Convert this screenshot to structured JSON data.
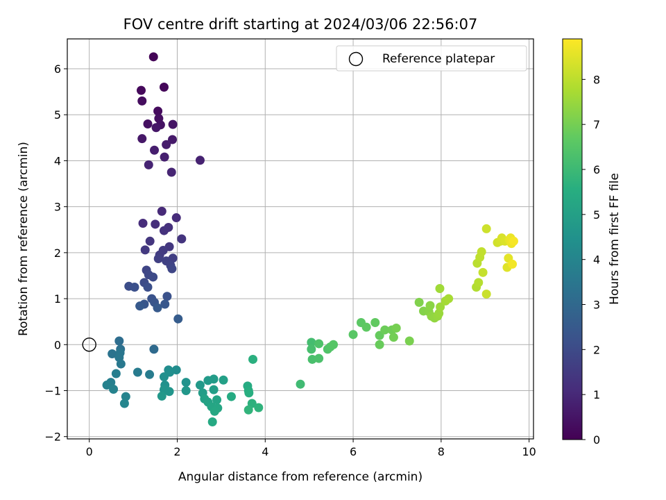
{
  "chart_data": {
    "type": "scatter",
    "title": "FOV centre drift starting at 2024/03/06 22:56:07",
    "xlabel": "Angular distance from reference (arcmin)",
    "ylabel": "Rotation from reference (arcmin)",
    "xlim": [
      -0.5,
      10.1
    ],
    "ylim": [
      -2.05,
      6.65
    ],
    "xticks": [
      0,
      2,
      4,
      6,
      8,
      10
    ],
    "yticks": [
      -2,
      -1,
      0,
      1,
      2,
      3,
      4,
      5,
      6
    ],
    "grid": true,
    "colormap": "viridis",
    "colorbar": {
      "label": "Hours from first FF file",
      "range": [
        0,
        8.9
      ],
      "ticks": [
        0,
        1,
        2,
        3,
        4,
        5,
        6,
        7,
        8
      ]
    },
    "legend": {
      "position": "top-right",
      "entries": [
        "Reference platepar"
      ]
    },
    "reference_point": {
      "x": 0,
      "y": 0,
      "label": "Reference platepar"
    },
    "points": [
      {
        "x": 1.46,
        "y": 6.26,
        "h": 0.1
      },
      {
        "x": 1.7,
        "y": 5.6,
        "h": 0.15
      },
      {
        "x": 1.18,
        "y": 5.53,
        "h": 0.2
      },
      {
        "x": 1.56,
        "y": 5.08,
        "h": 0.25
      },
      {
        "x": 1.2,
        "y": 5.3,
        "h": 0.3
      },
      {
        "x": 1.58,
        "y": 4.92,
        "h": 0.35
      },
      {
        "x": 1.33,
        "y": 4.8,
        "h": 0.4
      },
      {
        "x": 1.62,
        "y": 4.78,
        "h": 0.45
      },
      {
        "x": 1.9,
        "y": 4.79,
        "h": 0.5
      },
      {
        "x": 1.52,
        "y": 4.72,
        "h": 0.55
      },
      {
        "x": 1.2,
        "y": 4.48,
        "h": 0.6
      },
      {
        "x": 1.89,
        "y": 4.46,
        "h": 0.65
      },
      {
        "x": 1.75,
        "y": 4.35,
        "h": 0.7
      },
      {
        "x": 1.48,
        "y": 4.23,
        "h": 0.75
      },
      {
        "x": 1.71,
        "y": 4.08,
        "h": 0.8
      },
      {
        "x": 2.52,
        "y": 4.01,
        "h": 0.85
      },
      {
        "x": 1.35,
        "y": 3.91,
        "h": 0.9
      },
      {
        "x": 1.87,
        "y": 3.75,
        "h": 0.95
      },
      {
        "x": 1.65,
        "y": 2.9,
        "h": 1.05
      },
      {
        "x": 1.98,
        "y": 2.76,
        "h": 1.1
      },
      {
        "x": 1.22,
        "y": 2.64,
        "h": 1.15
      },
      {
        "x": 1.5,
        "y": 2.62,
        "h": 1.2
      },
      {
        "x": 1.8,
        "y": 2.55,
        "h": 1.25
      },
      {
        "x": 1.7,
        "y": 2.48,
        "h": 1.3
      },
      {
        "x": 2.1,
        "y": 2.3,
        "h": 1.35
      },
      {
        "x": 1.38,
        "y": 2.25,
        "h": 1.4
      },
      {
        "x": 1.82,
        "y": 2.13,
        "h": 1.45
      },
      {
        "x": 1.27,
        "y": 2.06,
        "h": 1.5
      },
      {
        "x": 1.68,
        "y": 2.05,
        "h": 1.55
      },
      {
        "x": 1.6,
        "y": 1.95,
        "h": 1.6
      },
      {
        "x": 1.9,
        "y": 1.88,
        "h": 1.65
      },
      {
        "x": 1.57,
        "y": 1.87,
        "h": 1.7
      },
      {
        "x": 1.75,
        "y": 1.82,
        "h": 1.75
      },
      {
        "x": 1.85,
        "y": 1.72,
        "h": 1.8
      },
      {
        "x": 1.3,
        "y": 1.62,
        "h": 1.85
      },
      {
        "x": 1.88,
        "y": 1.65,
        "h": 1.9
      },
      {
        "x": 1.35,
        "y": 1.52,
        "h": 1.95
      },
      {
        "x": 1.45,
        "y": 1.47,
        "h": 2.0
      },
      {
        "x": 1.25,
        "y": 1.35,
        "h": 2.05
      },
      {
        "x": 0.9,
        "y": 1.27,
        "h": 2.1
      },
      {
        "x": 1.33,
        "y": 1.25,
        "h": 2.15
      },
      {
        "x": 1.03,
        "y": 1.25,
        "h": 2.2
      },
      {
        "x": 1.77,
        "y": 1.05,
        "h": 2.25
      },
      {
        "x": 1.42,
        "y": 1.0,
        "h": 2.3
      },
      {
        "x": 1.48,
        "y": 0.92,
        "h": 2.35
      },
      {
        "x": 1.25,
        "y": 0.88,
        "h": 2.4
      },
      {
        "x": 1.72,
        "y": 0.88,
        "h": 2.45
      },
      {
        "x": 1.15,
        "y": 0.84,
        "h": 2.5
      },
      {
        "x": 1.55,
        "y": 0.8,
        "h": 2.55
      },
      {
        "x": 2.02,
        "y": 0.56,
        "h": 2.6
      },
      {
        "x": 1.47,
        "y": -0.1,
        "h": 3.1
      },
      {
        "x": 0.68,
        "y": 0.08,
        "h": 3.2
      },
      {
        "x": 0.71,
        "y": -0.1,
        "h": 3.3
      },
      {
        "x": 0.52,
        "y": -0.2,
        "h": 3.4
      },
      {
        "x": 0.7,
        "y": -0.18,
        "h": 3.5
      },
      {
        "x": 0.68,
        "y": -0.28,
        "h": 3.55
      },
      {
        "x": 0.72,
        "y": -0.42,
        "h": 3.6
      },
      {
        "x": 1.1,
        "y": -0.6,
        "h": 3.7
      },
      {
        "x": 1.37,
        "y": -0.65,
        "h": 3.75
      },
      {
        "x": 0.61,
        "y": -0.63,
        "h": 3.8
      },
      {
        "x": 0.49,
        "y": -0.82,
        "h": 3.85
      },
      {
        "x": 0.4,
        "y": -0.88,
        "h": 3.9
      },
      {
        "x": 0.55,
        "y": -0.97,
        "h": 3.95
      },
      {
        "x": 0.83,
        "y": -1.13,
        "h": 4.0
      },
      {
        "x": 0.8,
        "y": -1.28,
        "h": 4.05
      },
      {
        "x": 1.8,
        "y": -0.55,
        "h": 4.3
      },
      {
        "x": 1.98,
        "y": -0.55,
        "h": 4.35
      },
      {
        "x": 1.83,
        "y": -0.6,
        "h": 4.4
      },
      {
        "x": 1.7,
        "y": -0.7,
        "h": 4.45
      },
      {
        "x": 1.72,
        "y": -0.88,
        "h": 4.5
      },
      {
        "x": 2.2,
        "y": -0.82,
        "h": 4.55
      },
      {
        "x": 1.7,
        "y": -0.98,
        "h": 4.6
      },
      {
        "x": 1.82,
        "y": -1.02,
        "h": 4.65
      },
      {
        "x": 2.2,
        "y": -1.0,
        "h": 4.7
      },
      {
        "x": 1.65,
        "y": -1.12,
        "h": 4.75
      },
      {
        "x": 2.52,
        "y": -0.88,
        "h": 4.8
      },
      {
        "x": 2.7,
        "y": -0.78,
        "h": 4.85
      },
      {
        "x": 2.83,
        "y": -0.75,
        "h": 4.9
      },
      {
        "x": 2.58,
        "y": -1.05,
        "h": 4.95
      },
      {
        "x": 2.83,
        "y": -0.98,
        "h": 5.0
      },
      {
        "x": 3.05,
        "y": -0.77,
        "h": 5.05
      },
      {
        "x": 2.62,
        "y": -1.18,
        "h": 5.1
      },
      {
        "x": 2.7,
        "y": -1.25,
        "h": 5.15
      },
      {
        "x": 2.9,
        "y": -1.2,
        "h": 5.2
      },
      {
        "x": 2.78,
        "y": -1.35,
        "h": 5.25
      },
      {
        "x": 2.92,
        "y": -1.38,
        "h": 5.3
      },
      {
        "x": 2.85,
        "y": -1.45,
        "h": 5.35
      },
      {
        "x": 2.8,
        "y": -1.68,
        "h": 5.4
      },
      {
        "x": 3.23,
        "y": -1.13,
        "h": 5.45
      },
      {
        "x": 3.6,
        "y": -0.9,
        "h": 5.5
      },
      {
        "x": 3.62,
        "y": -1.0,
        "h": 5.55
      },
      {
        "x": 3.63,
        "y": -1.05,
        "h": 5.6
      },
      {
        "x": 3.72,
        "y": -0.32,
        "h": 5.65
      },
      {
        "x": 3.7,
        "y": -1.28,
        "h": 5.7
      },
      {
        "x": 3.85,
        "y": -1.37,
        "h": 5.75
      },
      {
        "x": 3.62,
        "y": -1.42,
        "h": 5.8
      },
      {
        "x": 4.8,
        "y": -0.86,
        "h": 6.1
      },
      {
        "x": 5.05,
        "y": 0.05,
        "h": 6.2
      },
      {
        "x": 5.05,
        "y": -0.1,
        "h": 6.25
      },
      {
        "x": 5.07,
        "y": -0.32,
        "h": 6.3
      },
      {
        "x": 5.22,
        "y": -0.3,
        "h": 6.35
      },
      {
        "x": 5.22,
        "y": 0.02,
        "h": 6.4
      },
      {
        "x": 5.42,
        "y": -0.1,
        "h": 6.45
      },
      {
        "x": 5.48,
        "y": -0.05,
        "h": 6.5
      },
      {
        "x": 5.55,
        "y": 0.0,
        "h": 6.55
      },
      {
        "x": 6.0,
        "y": 0.22,
        "h": 6.6
      },
      {
        "x": 6.18,
        "y": 0.48,
        "h": 6.65
      },
      {
        "x": 6.3,
        "y": 0.38,
        "h": 6.7
      },
      {
        "x": 6.5,
        "y": 0.48,
        "h": 6.75
      },
      {
        "x": 6.6,
        "y": 0.2,
        "h": 6.8
      },
      {
        "x": 6.6,
        "y": 0.0,
        "h": 6.85
      },
      {
        "x": 6.72,
        "y": 0.32,
        "h": 6.9
      },
      {
        "x": 6.88,
        "y": 0.32,
        "h": 6.95
      },
      {
        "x": 6.92,
        "y": 0.16,
        "h": 7.0
      },
      {
        "x": 6.98,
        "y": 0.36,
        "h": 7.05
      },
      {
        "x": 7.28,
        "y": 0.08,
        "h": 7.1
      },
      {
        "x": 7.5,
        "y": 0.92,
        "h": 7.2
      },
      {
        "x": 7.6,
        "y": 0.73,
        "h": 7.25
      },
      {
        "x": 7.72,
        "y": 0.72,
        "h": 7.3
      },
      {
        "x": 7.75,
        "y": 0.85,
        "h": 7.35
      },
      {
        "x": 7.78,
        "y": 0.62,
        "h": 7.4
      },
      {
        "x": 7.85,
        "y": 0.58,
        "h": 7.45
      },
      {
        "x": 7.92,
        "y": 0.62,
        "h": 7.5
      },
      {
        "x": 7.95,
        "y": 0.68,
        "h": 7.55
      },
      {
        "x": 7.98,
        "y": 0.82,
        "h": 7.6
      },
      {
        "x": 7.97,
        "y": 1.22,
        "h": 7.65
      },
      {
        "x": 8.1,
        "y": 0.95,
        "h": 7.7
      },
      {
        "x": 8.17,
        "y": 1.0,
        "h": 7.75
      },
      {
        "x": 8.8,
        "y": 1.25,
        "h": 7.9
      },
      {
        "x": 8.85,
        "y": 1.35,
        "h": 7.95
      },
      {
        "x": 8.82,
        "y": 1.77,
        "h": 8.0
      },
      {
        "x": 8.88,
        "y": 1.9,
        "h": 8.05
      },
      {
        "x": 8.92,
        "y": 2.02,
        "h": 8.1
      },
      {
        "x": 8.95,
        "y": 1.57,
        "h": 8.15
      },
      {
        "x": 9.03,
        "y": 1.1,
        "h": 8.2
      },
      {
        "x": 9.03,
        "y": 2.52,
        "h": 8.25
      },
      {
        "x": 9.28,
        "y": 2.22,
        "h": 8.3
      },
      {
        "x": 9.35,
        "y": 2.25,
        "h": 8.35
      },
      {
        "x": 9.38,
        "y": 2.32,
        "h": 8.4
      },
      {
        "x": 9.45,
        "y": 2.25,
        "h": 8.45
      },
      {
        "x": 9.5,
        "y": 1.68,
        "h": 8.5
      },
      {
        "x": 9.53,
        "y": 1.88,
        "h": 8.55
      },
      {
        "x": 9.55,
        "y": 2.28,
        "h": 8.6
      },
      {
        "x": 9.58,
        "y": 2.32,
        "h": 8.65
      },
      {
        "x": 9.6,
        "y": 2.2,
        "h": 8.7
      },
      {
        "x": 9.62,
        "y": 1.75,
        "h": 8.75
      },
      {
        "x": 9.65,
        "y": 2.25,
        "h": 8.8
      }
    ]
  }
}
